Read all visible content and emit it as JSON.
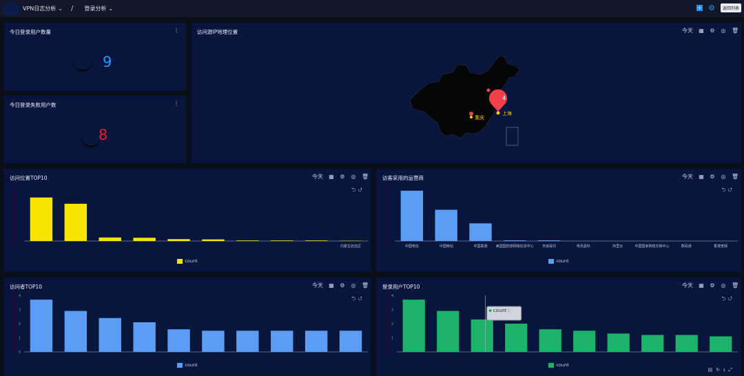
{
  "topbar": {
    "crumb1": "VPN日志分析",
    "crumb2": "登录分析",
    "separator": "/",
    "list_button": "返回列表"
  },
  "colors": {
    "panel": "#08163d",
    "accent": "#2a8cf0",
    "yellow": "#f7e400",
    "blue": "#5b9cf4",
    "green": "#1db36a",
    "kpi_blue": "#1e9cff",
    "kpi_red": "#e8202e"
  },
  "kpi": [
    {
      "title": "今日登录用户数量",
      "value": "9"
    },
    {
      "title": "今日登录失败用户数",
      "value": "8"
    }
  ],
  "map": {
    "title": "访问源IP地理位置",
    "range": "今天",
    "markers": [
      {
        "label": "上海",
        "count": "4"
      },
      {
        "label": "重庆"
      }
    ]
  },
  "range_label": "今天",
  "chart_data": [
    {
      "type": "bar",
      "title": "访问位置TOP10",
      "categories": [
        "",
        "",
        "",
        "",
        "",
        "",
        "",
        "",
        "",
        "内蒙古自治区"
      ],
      "series": [
        {
          "name": "count",
          "values": [
            16,
            13.7,
            1.3,
            1.2,
            0.7,
            0.6,
            0.2,
            0.2,
            0.2,
            0.1
          ]
        }
      ],
      "ylim": [
        0,
        20
      ],
      "color": "#f7e400"
    },
    {
      "type": "bar",
      "title": "访客采用的运营商",
      "categories": [
        "中国电信",
        "中国移动",
        "中国联通",
        "美国国防部网络信息中心",
        "天威视讯",
        "电讯盈科",
        "阿里云",
        "中国国家网络交换中心",
        "数码通",
        "香港宽频"
      ],
      "series": [
        {
          "name": "count",
          "values": [
            3.7,
            2.3,
            1.3,
            0.05,
            0.05,
            0,
            0,
            0,
            0,
            0
          ]
        }
      ],
      "ylim": [
        0,
        4
      ],
      "color": "#5b9cf4"
    },
    {
      "type": "bar",
      "title": "访问者TOP10",
      "categories": [
        "",
        "",
        "",
        "",
        "",
        "",
        "",
        "",
        "",
        ""
      ],
      "series": [
        {
          "name": "count",
          "values": [
            3.7,
            2.9,
            2.4,
            2.1,
            1.6,
            1.5,
            1.5,
            1.5,
            1.5,
            1.5
          ]
        }
      ],
      "ylim": [
        0,
        4
      ],
      "yticks": [
        "0",
        "1",
        "2",
        "3",
        "4"
      ],
      "color": "#5b9cf4"
    },
    {
      "type": "bar",
      "title": "登录用户TOP10",
      "categories": [
        "",
        "",
        "",
        "",
        "",
        "",
        "",
        "",
        "",
        ""
      ],
      "series": [
        {
          "name": "count",
          "values": [
            3.7,
            2.9,
            2.3,
            2.0,
            1.6,
            1.5,
            1.3,
            1.2,
            1.2,
            1.1
          ]
        }
      ],
      "ylim": [
        0,
        4
      ],
      "yticks": [
        "",
        "1",
        "2",
        "3",
        "4"
      ],
      "color": "#1db36a",
      "tooltip": "count :"
    }
  ]
}
